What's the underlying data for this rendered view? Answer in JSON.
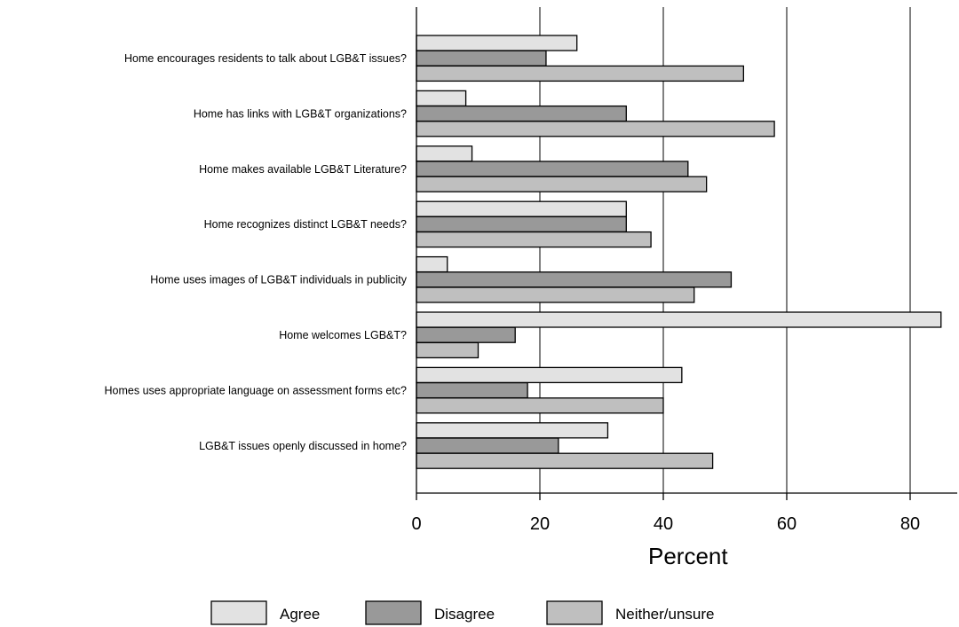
{
  "chart_data": {
    "type": "bar",
    "orientation": "horizontal",
    "categories": [
      "Home encourages residents to talk about LGB&T issues?",
      "Home has links with LGB&T organizations?",
      "Home makes available LGB&T Literature?",
      "Home recognizes distinct LGB&T needs?",
      "Home uses images of LGB&T individuals in publicity",
      "Home welcomes LGB&T?",
      "Homes uses appropriate language on assessment forms etc?",
      "LGB&T issues openly discussed in home?"
    ],
    "series": [
      {
        "name": "Agree",
        "color": "#e2e2e2",
        "values": [
          26,
          8,
          9,
          34,
          5,
          85,
          43,
          31
        ]
      },
      {
        "name": "Disagree",
        "color": "#999999",
        "values": [
          21,
          34,
          44,
          34,
          51,
          16,
          18,
          23
        ]
      },
      {
        "name": "Neither/unsure",
        "color": "#bfbfbf",
        "values": [
          53,
          58,
          47,
          38,
          45,
          10,
          40,
          48
        ]
      }
    ],
    "xlabel": "Percent",
    "ylabel": "",
    "xlim": [
      0,
      88
    ],
    "xticks": [
      0,
      20,
      40,
      60,
      80
    ],
    "grid": "vertical",
    "legend": "bottom"
  }
}
